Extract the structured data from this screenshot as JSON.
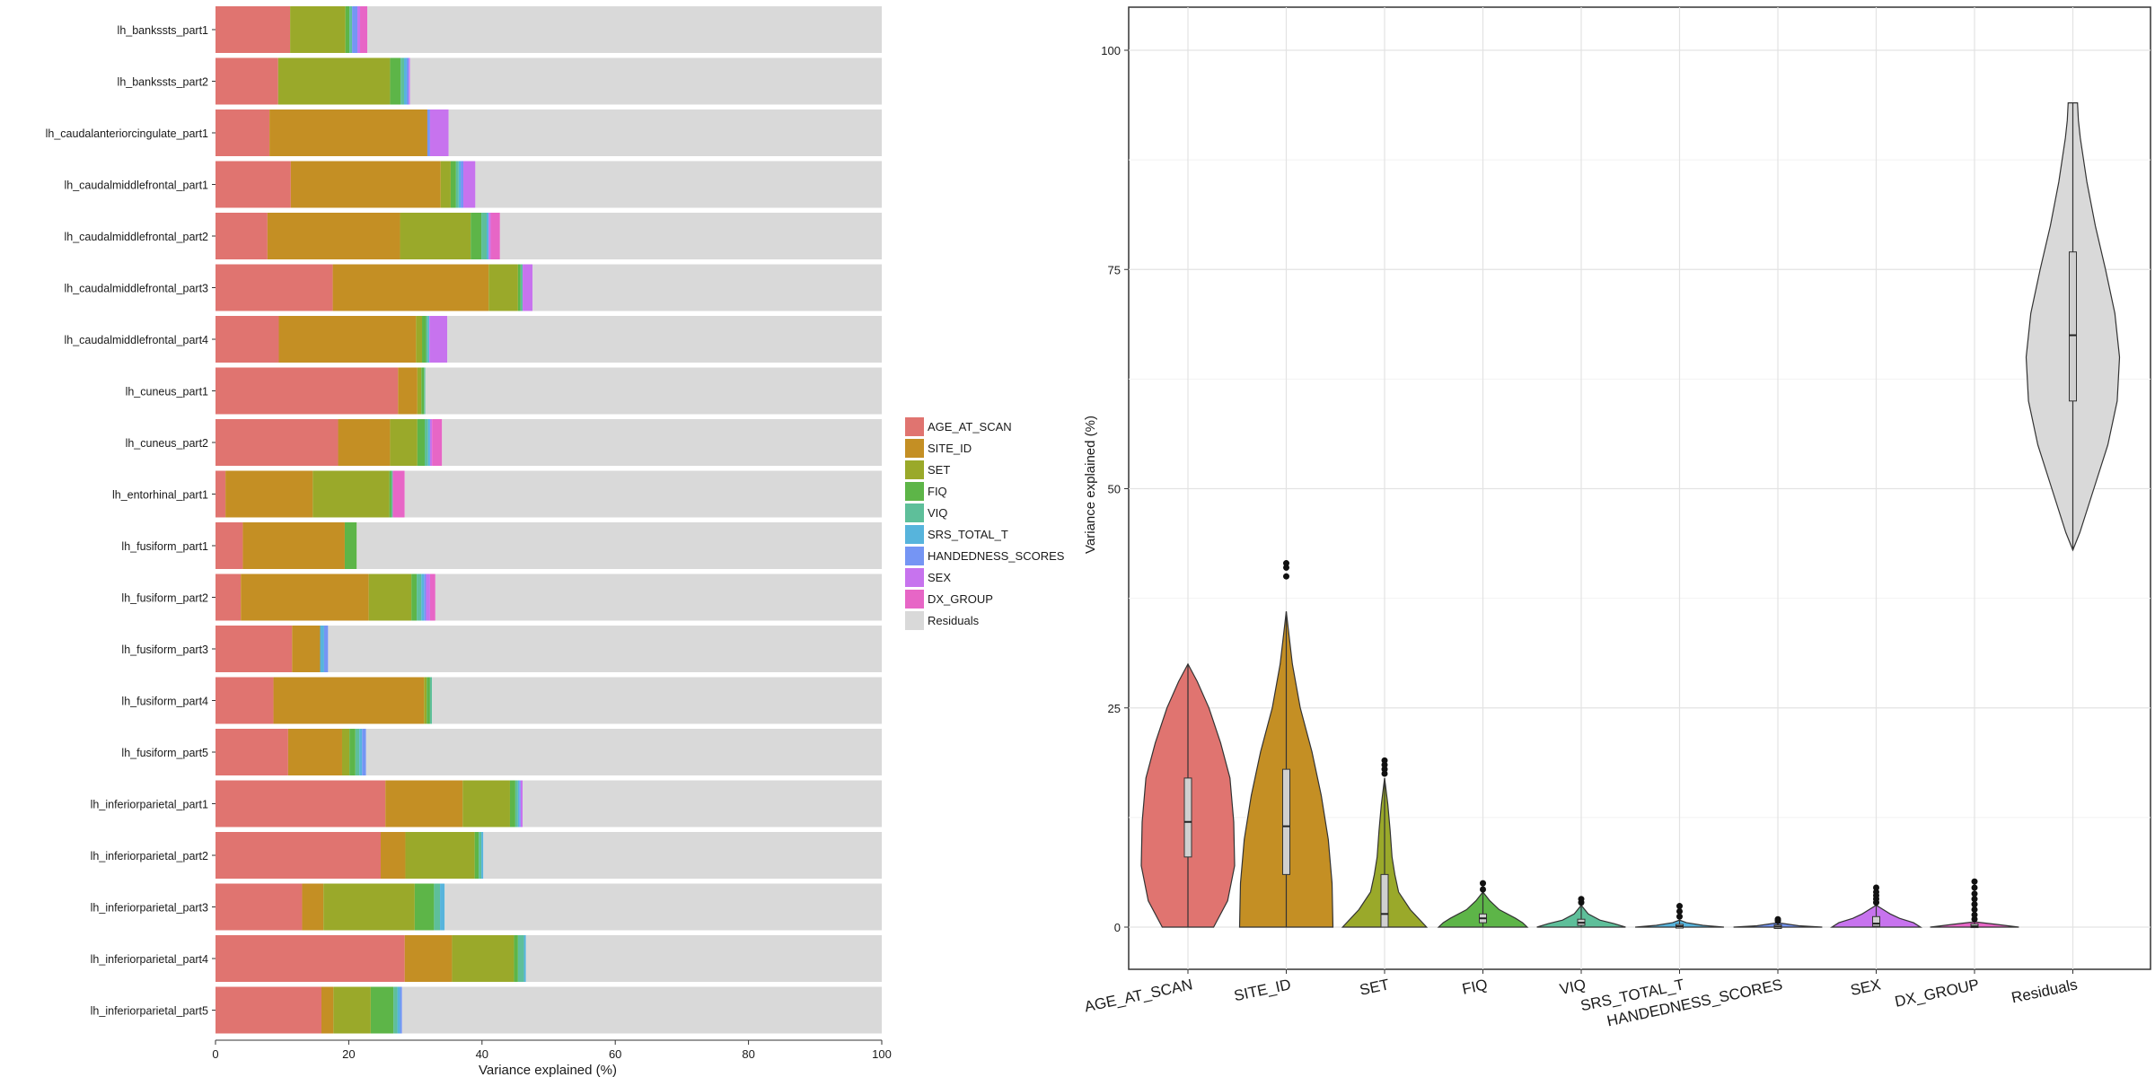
{
  "chart_data": [
    {
      "type": "bar",
      "orientation": "horizontal",
      "stacked": true,
      "xlabel": "Variance explained (%)",
      "ylabel": "",
      "xlim": [
        0,
        100
      ],
      "x_ticks": [
        0,
        20,
        40,
        60,
        80,
        100
      ],
      "grid": false,
      "legend_placement": "right",
      "categories": [
        "lh_bankssts_part1",
        "lh_bankssts_part2",
        "lh_caudalanteriorcingulate_part1",
        "lh_caudalmiddlefrontal_part1",
        "lh_caudalmiddlefrontal_part2",
        "lh_caudalmiddlefrontal_part3",
        "lh_caudalmiddlefrontal_part4",
        "lh_cuneus_part1",
        "lh_cuneus_part2",
        "lh_entorhinal_part1",
        "lh_fusiform_part1",
        "lh_fusiform_part2",
        "lh_fusiform_part3",
        "lh_fusiform_part4",
        "lh_fusiform_part5",
        "lh_inferiorparietal_part1",
        "lh_inferiorparietal_part2",
        "lh_inferiorparietal_part3",
        "lh_inferiorparietal_part4",
        "lh_inferiorparietal_part5"
      ],
      "series": [
        {
          "name": "AGE_AT_SCAN",
          "color": "#e07470",
          "values": [
            11.2,
            9.4,
            8.1,
            11.3,
            7.8,
            17.6,
            9.5,
            27.4,
            18.4,
            1.5,
            4.1,
            3.8,
            11.5,
            8.7,
            10.9,
            25.5,
            24.8,
            13.0,
            28.4,
            15.9
          ]
        },
        {
          "name": "SITE_ID",
          "color": "#c48f24",
          "values": [
            0,
            0,
            23.7,
            22.5,
            19.9,
            23.4,
            20.6,
            2.9,
            7.8,
            13.1,
            15.3,
            19.2,
            4.2,
            22.6,
            8.1,
            11.6,
            3.7,
            3.2,
            7.1,
            1.8
          ]
        },
        {
          "name": "SET",
          "color": "#9aa92a",
          "values": [
            8.3,
            16.8,
            0,
            1.5,
            10.6,
            4.4,
            0.9,
            0.6,
            4.1,
            11.5,
            0,
            6.4,
            0,
            0.4,
            1.1,
            7.1,
            10.4,
            13.7,
            9.3,
            5.6
          ]
        },
        {
          "name": "FIQ",
          "color": "#5db548",
          "values": [
            0.6,
            1.6,
            0,
            0.8,
            1.6,
            0.4,
            0.6,
            0.4,
            1.1,
            0.3,
            1.8,
            0.8,
            0,
            0.5,
            0.9,
            0.8,
            0.6,
            2.9,
            0.6,
            3.4
          ]
        },
        {
          "name": "VIQ",
          "color": "#5ebf9a",
          "values": [
            0.4,
            0.5,
            0,
            0.4,
            0.8,
            0.3,
            0.3,
            0.2,
            0.5,
            0.2,
            0,
            0.7,
            0,
            0.3,
            0.6,
            0.4,
            0.4,
            0.9,
            0.9,
            0.6
          ]
        },
        {
          "name": "SRS_TOTAL_T",
          "color": "#57b4dc",
          "values": [
            0,
            0.4,
            0,
            0.3,
            0.3,
            0,
            0.2,
            0,
            0.3,
            0,
            0,
            0.4,
            0.6,
            0,
            0.4,
            0.2,
            0.3,
            0.7,
            0.3,
            0.4
          ]
        },
        {
          "name": "HANDEDNESS_SCORES",
          "color": "#7595f4",
          "values": [
            0.8,
            0.3,
            0.4,
            0.4,
            0,
            0,
            0,
            0,
            0,
            0,
            0,
            0.3,
            0.6,
            0,
            0.6,
            0.2,
            0,
            0,
            0,
            0.3
          ]
        },
        {
          "name": "SEX",
          "color": "#c773ee",
          "values": [
            0.4,
            0.2,
            2.8,
            1.8,
            0.3,
            1.5,
            2.7,
            0,
            0.3,
            0,
            0,
            0.6,
            0,
            0,
            0,
            0.3,
            0,
            0,
            0,
            0
          ]
        },
        {
          "name": "DX_GROUP",
          "color": "#e766c6",
          "values": [
            1.1,
            0,
            0,
            0,
            1.4,
            0,
            0,
            0,
            1.5,
            1.8,
            0,
            0.8,
            0,
            0,
            0,
            0,
            0,
            0,
            0,
            0
          ]
        },
        {
          "name": "Residuals",
          "color": "#d9d9d9",
          "values": [
            77.5,
            71.0,
            65.0,
            62.5,
            57.6,
            52.6,
            65.4,
            68.7,
            66.2,
            71.8,
            78.9,
            67.2,
            83.4,
            67.7,
            77.8,
            54.1,
            60.1,
            65.9,
            54.0,
            72.3
          ]
        }
      ]
    },
    {
      "type": "violin",
      "xlabel": "",
      "ylabel": "Variance explained (%)",
      "ylim": [
        -5,
        105
      ],
      "y_ticks": [
        0,
        25,
        50,
        75,
        100
      ],
      "grid": true,
      "categories": [
        "AGE_AT_SCAN",
        "SITE_ID",
        "SET",
        "FIQ",
        "VIQ",
        "SRS_TOTAL_T",
        "HANDEDNESS_SCORES",
        "SEX",
        "DX_GROUP",
        "Residuals"
      ],
      "colors": [
        "#e07470",
        "#c48f24",
        "#9aa92a",
        "#5db548",
        "#5ebf9a",
        "#57b4dc",
        "#7595f4",
        "#c773ee",
        "#e766c6",
        "#d9d9d9"
      ],
      "distributions": [
        {
          "min": 0,
          "max": 30,
          "q1": 8,
          "median": 12,
          "q3": 17,
          "widths": [
            [
              0,
              0.55
            ],
            [
              3,
              0.85
            ],
            [
              7,
              1.0
            ],
            [
              12,
              0.98
            ],
            [
              17,
              0.9
            ],
            [
              21,
              0.7
            ],
            [
              25,
              0.45
            ],
            [
              28,
              0.2
            ],
            [
              30,
              0
            ]
          ],
          "outliers": []
        },
        {
          "min": 0,
          "max": 36,
          "q1": 6,
          "median": 11.5,
          "q3": 18,
          "widths": [
            [
              0,
              1.0
            ],
            [
              5,
              0.98
            ],
            [
              10,
              0.9
            ],
            [
              15,
              0.75
            ],
            [
              20,
              0.55
            ],
            [
              25,
              0.3
            ],
            [
              30,
              0.13
            ],
            [
              36,
              0
            ]
          ],
          "outliers": [
            40,
            41,
            41.5
          ]
        },
        {
          "min": 0,
          "max": 17,
          "q1": 0,
          "median": 1.5,
          "q3": 6,
          "widths": [
            [
              0,
              0.9
            ],
            [
              2,
              0.55
            ],
            [
              4,
              0.3
            ],
            [
              6,
              0.22
            ],
            [
              8,
              0.16
            ],
            [
              11,
              0.12
            ],
            [
              14,
              0.07
            ],
            [
              17,
              0
            ]
          ],
          "outliers": [
            17.5,
            18,
            18.5,
            19
          ]
        },
        {
          "min": 0,
          "max": 4,
          "q1": 0.5,
          "median": 1,
          "q3": 1.5,
          "widths": [
            [
              0,
              0.95
            ],
            [
              0.5,
              0.85
            ],
            [
              1,
              0.7
            ],
            [
              2,
              0.35
            ],
            [
              3,
              0.15
            ],
            [
              4,
              0
            ]
          ],
          "outliers": [
            4.3,
            5
          ]
        },
        {
          "min": 0,
          "max": 2.5,
          "q1": 0.2,
          "median": 0.5,
          "q3": 0.9,
          "widths": [
            [
              0,
              0.95
            ],
            [
              0.4,
              0.7
            ],
            [
              0.8,
              0.4
            ],
            [
              1.5,
              0.15
            ],
            [
              2.5,
              0
            ]
          ],
          "outliers": [
            2.8,
            3.2
          ]
        },
        {
          "min": 0,
          "max": 0.8,
          "q1": 0,
          "median": 0.1,
          "q3": 0.2,
          "widths": [
            [
              0,
              0.95
            ],
            [
              0.2,
              0.5
            ],
            [
              0.5,
              0.15
            ],
            [
              0.8,
              0
            ]
          ],
          "outliers": [
            1.2,
            1.8,
            2.4
          ]
        },
        {
          "min": 0,
          "max": 0.5,
          "q1": 0,
          "median": 0.05,
          "q3": 0.1,
          "widths": [
            [
              0,
              0.95
            ],
            [
              0.15,
              0.45
            ],
            [
              0.5,
              0
            ]
          ],
          "outliers": [
            0.7,
            0.9
          ]
        },
        {
          "min": 0,
          "max": 2.5,
          "q1": 0.1,
          "median": 0.4,
          "q3": 1.2,
          "widths": [
            [
              0,
              0.95
            ],
            [
              0.5,
              0.8
            ],
            [
              1,
              0.5
            ],
            [
              1.5,
              0.3
            ],
            [
              2.5,
              0
            ]
          ],
          "outliers": [
            2.8,
            3.2,
            3.6,
            4,
            4.5
          ]
        },
        {
          "min": 0,
          "max": 0.6,
          "q1": 0,
          "median": 0.1,
          "q3": 0.3,
          "widths": [
            [
              0,
              0.95
            ],
            [
              0.3,
              0.5
            ],
            [
              0.6,
              0
            ]
          ],
          "outliers": [
            0.9,
            1.4,
            2,
            2.6,
            3.2,
            3.8,
            4.5,
            5.2
          ]
        },
        {
          "min": 43,
          "max": 94,
          "q1": 60,
          "median": 67.5,
          "q3": 77,
          "widths": [
            [
              43,
              0
            ],
            [
              45,
              0.15
            ],
            [
              50,
              0.45
            ],
            [
              55,
              0.75
            ],
            [
              60,
              0.95
            ],
            [
              65,
              1.0
            ],
            [
              70,
              0.9
            ],
            [
              75,
              0.7
            ],
            [
              80,
              0.48
            ],
            [
              85,
              0.3
            ],
            [
              90,
              0.16
            ],
            [
              92,
              0.12
            ],
            [
              94,
              0.1
            ]
          ],
          "outliers": []
        }
      ]
    }
  ]
}
